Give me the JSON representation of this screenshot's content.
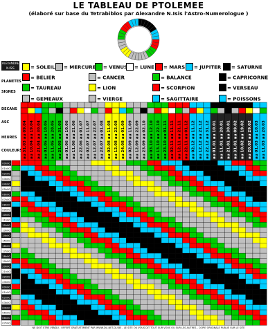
{
  "header": {
    "title": "LE TABLEAU DE PTOLEMEE",
    "subtitle": "(élaboré sur base du Tetrabiblos par Alexandre N.Isis l'Astro-Numerologue )"
  },
  "planets_legend": [
    {
      "label": "= SOLEIL",
      "color": "#ffff00"
    },
    {
      "label": "= MERCURE",
      "color": "#c0c0c0"
    },
    {
      "label": "= VENUS",
      "color": "#00cc00"
    },
    {
      "label": "= LUNE",
      "color": "#ffffff"
    },
    {
      "label": "= MARS",
      "color": "#ff0000"
    },
    {
      "label": "= JUPITER",
      "color": "#00ccff"
    },
    {
      "label": "= SATURNE",
      "color": "#000000"
    }
  ],
  "signs_legend": [
    [
      {
        "label": "= BELIER",
        "color": "#ff0000"
      },
      {
        "label": "= CANCER",
        "color": "#c0c0c0"
      },
      {
        "label": "= BALANCE",
        "color": "#00cc00"
      },
      {
        "label": "= CAPRICORNE",
        "color": "#000000"
      }
    ],
    [
      {
        "label": "= TAUREAU",
        "color": "#00cc00"
      },
      {
        "label": "= LION",
        "color": "#ffff00"
      },
      {
        "label": "= SCORPION",
        "color": "#ff0000"
      },
      {
        "label": "= VERSEAU",
        "color": "#000000"
      }
    ],
    [
      {
        "label": "= GEMEAUX",
        "color": "#c0c0c0"
      },
      {
        "label": "= VIERGE",
        "color": "#c0c0c0"
      },
      {
        "label": "= SAGITTAIRE",
        "color": "#00ccff"
      },
      {
        "label": "= POISSONS",
        "color": "#00ccff"
      }
    ]
  ],
  "row_labels": {
    "planetes": "PLANETES",
    "signes": "SIGNES",
    "decans": "DECANS",
    "asc": "ASC",
    "heures": "HEURES",
    "couleurs": "COULEURS"
  },
  "columns": [
    "au 31.03 au 09.04",
    "au 10.04 au 19.04",
    "au 21.04 au 30.04",
    "au 01.05 au 10.05",
    "au 11.05 au 20.05",
    "au 21.05 au 31.05",
    "au 01.06 au 10.06",
    "au 11.06 au 21.06",
    "au 22.06 au 01.07",
    "au 02.07 au 11.07",
    "au 12.07 au 22.07",
    "au 23.07 au 01.08",
    "au 02.08 au 11.08",
    "au 12.08 au 22.08",
    "au 24.08 au 01.09",
    "au 02.09 au 11.09",
    "au 12.09 au 22.09",
    "au 23.09 au 02.10",
    "au 03.10 au 12.10",
    "au 13.10 au 22.10",
    "au 23.10 au 01.11",
    "au 02.11 au 11.11",
    "au 12.11 au 21.11",
    "au 22.11 au 01.12",
    "au 02.12 au 11.12",
    "au 12.12 au 21.12",
    "au 22.12 au 31.12",
    "au 01.01 au 10.01",
    "au 11.01 au 20.01",
    "au 21.01 au 30.01",
    "au 31.01 au 09.02",
    "au 10.02 au 19.02",
    "au 20.02 au 29.02",
    "au 01.03 au 10.03",
    "au 11.03 au 20.03"
  ],
  "hours": [
    "00h00",
    "01h00",
    "02h00",
    "03h00",
    "04h00",
    "05h00",
    "06h00",
    "07h00",
    "08h00",
    "09h00",
    "10h00",
    "11h00",
    "12h00",
    "13h00",
    "14h00",
    "15h00",
    "16h00",
    "17h00",
    "18h00",
    "19h00",
    "20h00",
    "21h00",
    "22h00",
    "23h00",
    "00h00",
    "01h00",
    "02h00",
    "03h00",
    "04h00",
    "05h00",
    "06h00",
    "07h00"
  ],
  "logo_text": "ALEXANDRE N.ISIS",
  "footer": "NE DOIT ETRE VENDU - OFFERT GRATUITEMENT PAR WWW.DU-NET-DU.BE - LE SITE OU VOUS DIT TOUT SUR VOUS OU SUR LES AUTRES - COPIE ORIGINALE PUBLIE SUR LE SITE",
  "palette": {
    "red": "#ff0000",
    "yellow": "#ffff00",
    "green": "#00cc00",
    "cyan": "#00ccff",
    "gray": "#c0c0c0",
    "black": "#000000",
    "white": "#ffffff"
  }
}
